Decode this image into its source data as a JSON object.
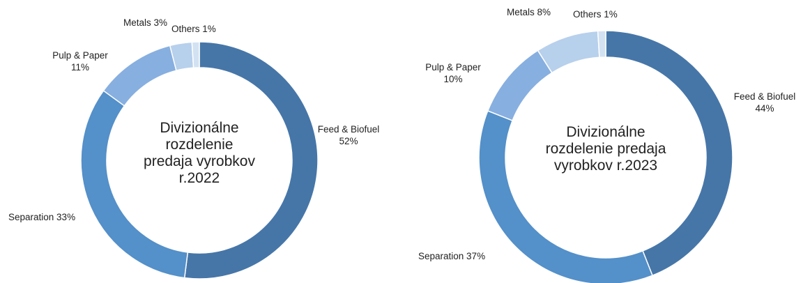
{
  "chart_data": [
    {
      "type": "pie",
      "title": "Divizionálne rozdelenie predaja vyrobkov r.2022",
      "center_lines": [
        "Divizionálne",
        "rozdelenie",
        "predaja vyrobkov",
        "r.2022"
      ],
      "slices": [
        {
          "label": "Feed & Biofuel",
          "value": 52,
          "text": "52%",
          "color": "#4676a8"
        },
        {
          "label": "Separation",
          "value": 33,
          "text": "33%",
          "color": "#5490c9"
        },
        {
          "label": "Pulp & Paper",
          "value": 11,
          "text": "11%",
          "color": "#87afe0"
        },
        {
          "label": "Metals",
          "value": 3,
          "text": "3%",
          "color": "#b7d0ec"
        },
        {
          "label": "Others",
          "value": 1,
          "text": "1%",
          "color": "#d2e2f3"
        }
      ]
    },
    {
      "type": "pie",
      "title": "Divizionálne rozdelenie predaja vyrobkov r.2023",
      "center_lines": [
        "Divizionálne",
        "rozdelenie predaja",
        "vyrobkov r.2023"
      ],
      "slices": [
        {
          "label": "Feed & Biofuel",
          "value": 44,
          "text": "44%",
          "color": "#4676a8"
        },
        {
          "label": "Separation",
          "value": 37,
          "text": "37%",
          "color": "#5490c9"
        },
        {
          "label": "Pulp & Paper",
          "value": 10,
          "text": "10%",
          "color": "#87afe0"
        },
        {
          "label": "Metals",
          "value": 8,
          "text": "8%",
          "color": "#b7d0ec"
        },
        {
          "label": "Others",
          "value": 1,
          "text": "1%",
          "color": "#d2e2f3"
        }
      ]
    }
  ]
}
